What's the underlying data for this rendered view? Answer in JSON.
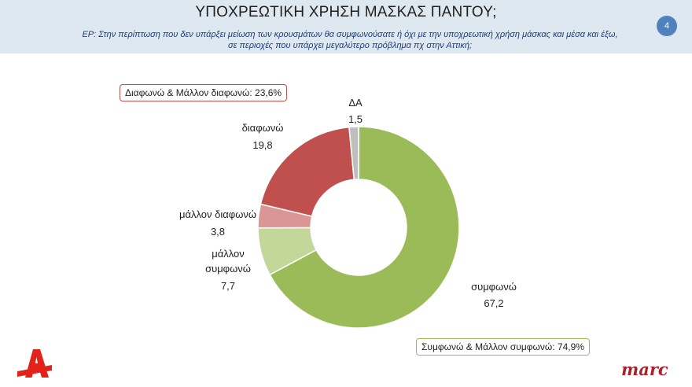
{
  "header": {
    "title": "ΥΠΟΧΡΕΩΤΙΚΗ ΧΡΗΣΗ ΜΑΣΚΑΣ ΠΑΝΤΟΥ;",
    "question_line1": "ΕΡ: Στην περίπτωση που δεν υπάρξει μείωση των κρουσμάτων θα συμφωνούσατε ή όχι με την υποχρεωτική χρήση μάσκας και μέσα και έξω,",
    "question_line2": "σε περιοχές που υπάρχει μεγαλύτερο πρόβλημα πχ στην Αττική;",
    "page_number": "4"
  },
  "callouts": {
    "disagree_total": "Διαφωνώ & Μάλλον διαφωνώ: 23,6%",
    "agree_total": "Συμφωνώ & Μάλλον συμφωνώ: 74,9%"
  },
  "colors": {
    "agree": "#9bbb59",
    "rather_agree": "#c4d79b",
    "rather_disagree": "#da9694",
    "disagree": "#c0504d",
    "dk": "#bfbfbf"
  },
  "logos": {
    "alpha_icon": "alpha-logo-icon",
    "marc": "marc"
  },
  "chart_data": {
    "type": "pie",
    "variant": "donut",
    "start": "top, clockwise",
    "slices": [
      {
        "name": "συμφωνώ",
        "value": 67.2,
        "label": "67,2",
        "color": "#9bbb59"
      },
      {
        "name": "μάλλον συμφωνώ",
        "value": 7.7,
        "label": "7,7",
        "color": "#c4d79b"
      },
      {
        "name": "μάλλον διαφωνώ",
        "value": 3.8,
        "label": "3,8",
        "color": "#da9694"
      },
      {
        "name": "διαφωνώ",
        "value": 19.8,
        "label": "19,8",
        "color": "#c0504d"
      },
      {
        "name": "ΔΑ",
        "value": 1.5,
        "label": "1,5",
        "color": "#bfbfbf"
      }
    ]
  }
}
